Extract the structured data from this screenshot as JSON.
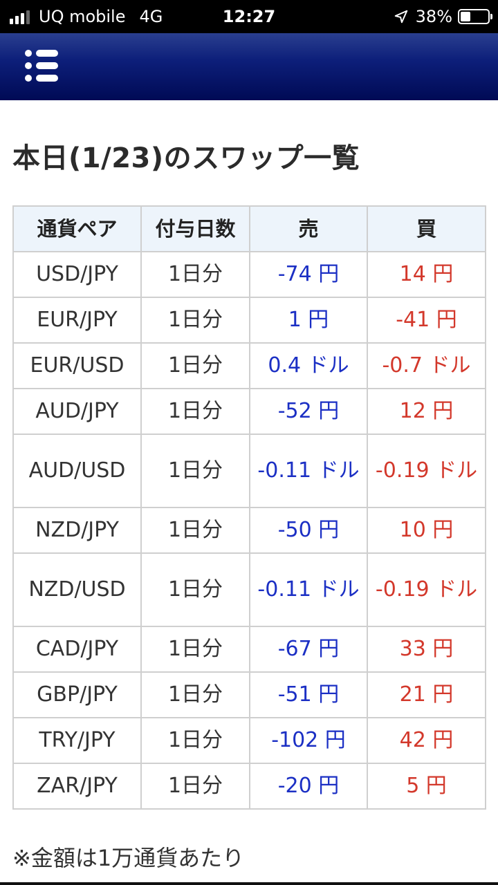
{
  "status_bar": {
    "carrier": "UQ mobile",
    "network": "4G",
    "time": "12:27",
    "battery": "38%",
    "battery_level": 0.38,
    "icons": [
      "signal-icon",
      "location-arrow-icon",
      "battery-icon"
    ]
  },
  "header": {
    "menu_icon": "list-menu-icon",
    "gradient_colors": [
      "#2a3f8f",
      "#000a55"
    ]
  },
  "page": {
    "title": "本日(1/23)のスワップ一覧",
    "footnote": "※金額は1万通貨あたり"
  },
  "table": {
    "columns": [
      "通貨ペア",
      "付与日数",
      "売",
      "買"
    ],
    "rows": [
      {
        "pair": "USD/JPY",
        "days": "1日分",
        "sell": "-74 円",
        "buy": "14 円"
      },
      {
        "pair": "EUR/JPY",
        "days": "1日分",
        "sell": "1 円",
        "buy": "-41 円"
      },
      {
        "pair": "EUR/USD",
        "days": "1日分",
        "sell": "0.4 ドル",
        "buy": "-0.7 ドル"
      },
      {
        "pair": "AUD/JPY",
        "days": "1日分",
        "sell": "-52 円",
        "buy": "12 円"
      },
      {
        "pair": "AUD/USD",
        "days": "1日分",
        "sell": "-0.11 ドル",
        "buy": "-0.19 ドル"
      },
      {
        "pair": "NZD/JPY",
        "days": "1日分",
        "sell": "-50 円",
        "buy": "10 円"
      },
      {
        "pair": "NZD/USD",
        "days": "1日分",
        "sell": "-0.11 ドル",
        "buy": "-0.19 ドル"
      },
      {
        "pair": "CAD/JPY",
        "days": "1日分",
        "sell": "-67 円",
        "buy": "33 円"
      },
      {
        "pair": "GBP/JPY",
        "days": "1日分",
        "sell": "-51 円",
        "buy": "21 円"
      },
      {
        "pair": "TRY/JPY",
        "days": "1日分",
        "sell": "-102 円",
        "buy": "42 円"
      },
      {
        "pair": "ZAR/JPY",
        "days": "1日分",
        "sell": "-20 円",
        "buy": "5 円"
      }
    ],
    "colors": {
      "sell": "#1b2fc4",
      "buy": "#d3382b",
      "header_bg": "#edf4fb"
    }
  }
}
